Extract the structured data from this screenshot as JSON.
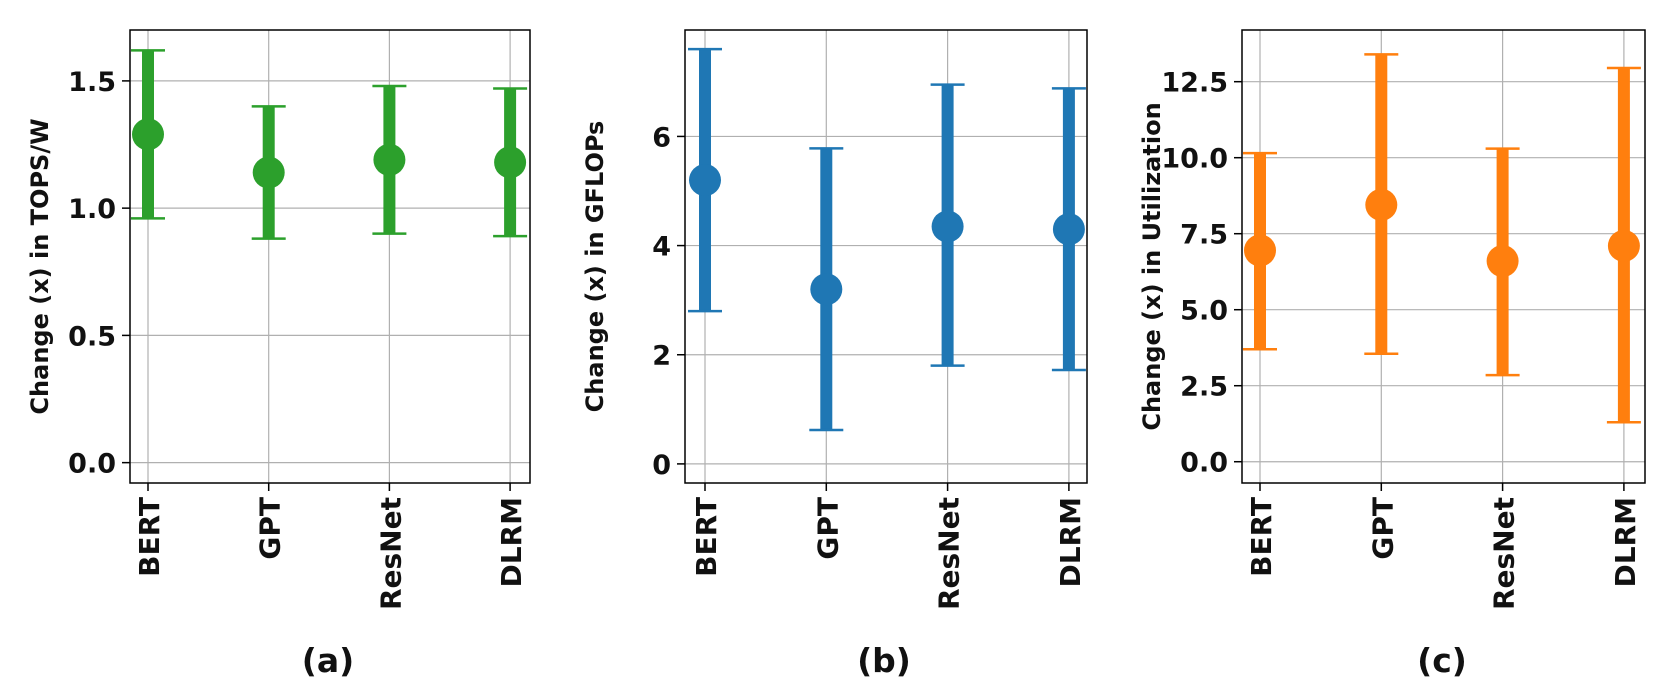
{
  "chart_data": [
    {
      "type": "scatter",
      "panel_label": "(a)",
      "ylabel": "Change (x) in TOPS/W",
      "categories": [
        "BERT",
        "GPT",
        "ResNet",
        "DLRM"
      ],
      "means": [
        1.29,
        1.14,
        1.19,
        1.18
      ],
      "lower": [
        0.96,
        0.88,
        0.9,
        0.89
      ],
      "upper": [
        1.62,
        1.4,
        1.48,
        1.47
      ],
      "ylim": [
        -0.08,
        1.7
      ],
      "yticks": [
        0.0,
        0.5,
        1.0,
        1.5
      ],
      "ytick_labels": [
        "0.0",
        "0.5",
        "1.0",
        "1.5"
      ],
      "color": "#2ca02c",
      "grid": true
    },
    {
      "type": "scatter",
      "panel_label": "(b)",
      "ylabel": "Change (x) in GFLOPs",
      "categories": [
        "BERT",
        "GPT",
        "ResNet",
        "DLRM"
      ],
      "means": [
        5.2,
        3.2,
        4.35,
        4.3
      ],
      "lower": [
        2.8,
        0.62,
        1.8,
        1.72
      ],
      "upper": [
        7.6,
        5.78,
        6.95,
        6.88
      ],
      "ylim": [
        -0.35,
        7.95
      ],
      "yticks": [
        0,
        2,
        4,
        6
      ],
      "ytick_labels": [
        "0",
        "2",
        "4",
        "6"
      ],
      "color": "#1f77b4",
      "grid": true
    },
    {
      "type": "scatter",
      "panel_label": "(c)",
      "ylabel": "Change (x) in Utilization",
      "categories": [
        "BERT",
        "GPT",
        "ResNet",
        "DLRM"
      ],
      "means": [
        6.95,
        8.45,
        6.6,
        7.1
      ],
      "lower": [
        3.7,
        3.55,
        2.85,
        1.3
      ],
      "upper": [
        10.15,
        13.4,
        10.3,
        12.95
      ],
      "ylim": [
        -0.7,
        14.2
      ],
      "yticks": [
        0.0,
        2.5,
        5.0,
        7.5,
        10.0,
        12.5
      ],
      "ytick_labels": [
        "0.0",
        "2.5",
        "5.0",
        "7.5",
        "10.0",
        "12.5"
      ],
      "color": "#ff7f0e",
      "grid": true
    }
  ]
}
